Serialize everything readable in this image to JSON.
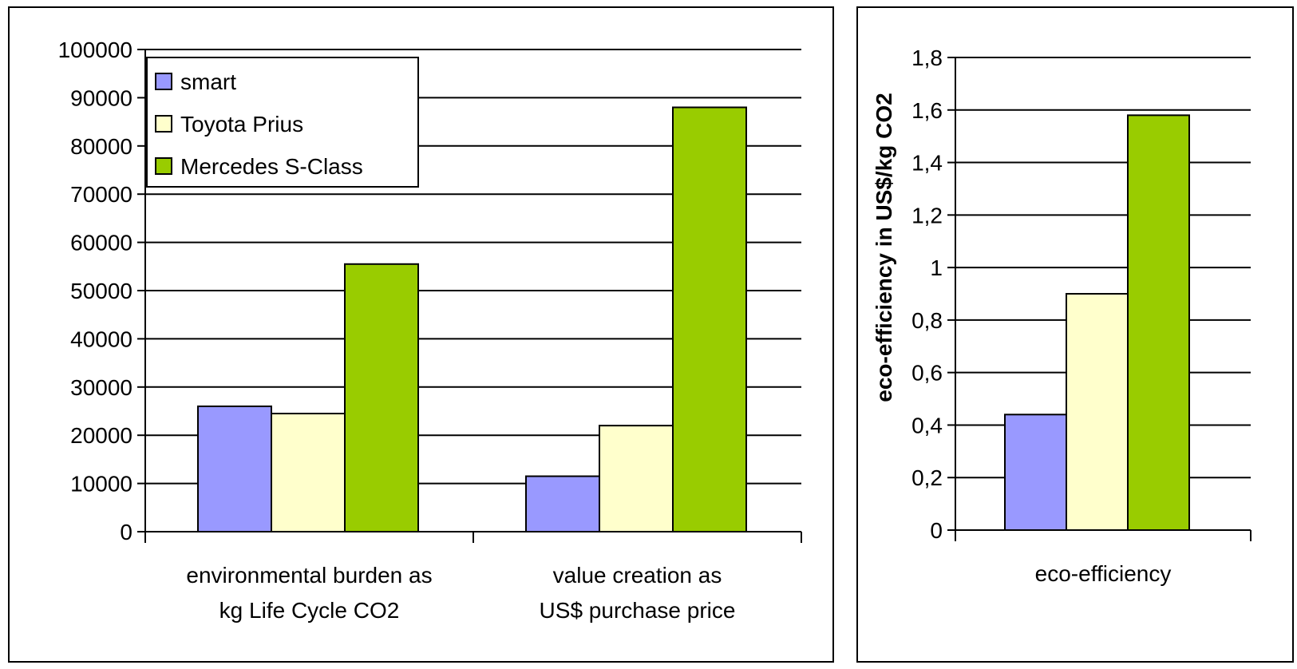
{
  "chart_data": [
    {
      "type": "bar",
      "categories": [
        [
          "environmental burden as",
          "kg Life Cycle CO2"
        ],
        [
          "value creation as",
          "US$ purchase price"
        ]
      ],
      "series": [
        {
          "name": "smart",
          "color": "#9999ff",
          "values": [
            26000,
            11500
          ]
        },
        {
          "name": "Toyota Prius",
          "color": "#ffffcc",
          "values": [
            24500,
            22000
          ]
        },
        {
          "name": "Mercedes S-Class",
          "color": "#99cc00",
          "values": [
            55500,
            88000
          ]
        }
      ],
      "yticks": [
        "0",
        "10000",
        "20000",
        "30000",
        "40000",
        "50000",
        "60000",
        "70000",
        "80000",
        "90000",
        "100000"
      ],
      "ylim": [
        0,
        100000
      ],
      "ylabel": "",
      "grid": true,
      "legend": "top-left"
    },
    {
      "type": "bar",
      "categories": [
        [
          "eco-efficiency"
        ]
      ],
      "series": [
        {
          "name": "smart",
          "color": "#9999ff",
          "values": [
            0.44
          ]
        },
        {
          "name": "Toyota Prius",
          "color": "#ffffcc",
          "values": [
            0.9
          ]
        },
        {
          "name": "Mercedes S-Class",
          "color": "#99cc00",
          "values": [
            1.58
          ]
        }
      ],
      "yticks": [
        "0",
        "0,2",
        "0,4",
        "0,6",
        "0,8",
        "1",
        "1,2",
        "1,4",
        "1,6",
        "1,8"
      ],
      "ylim": [
        0,
        1.8
      ],
      "ylabel": "eco-efficiency in US$/kg CO2",
      "grid": true,
      "legend": "none"
    }
  ]
}
